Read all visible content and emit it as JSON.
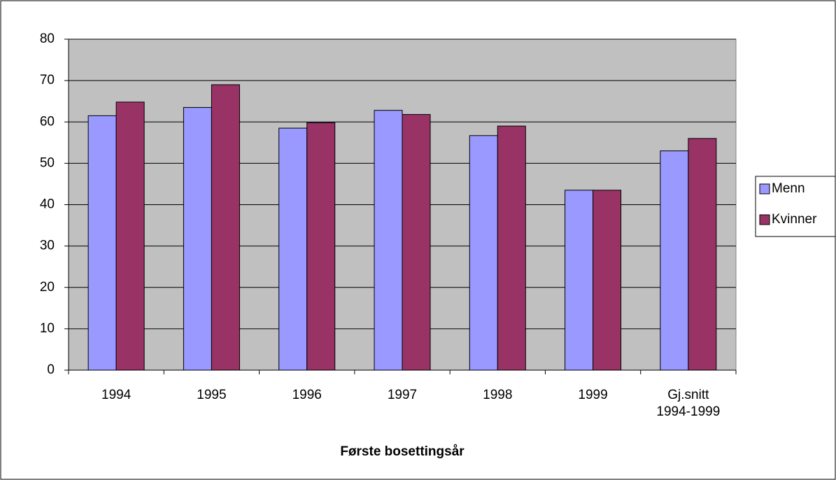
{
  "chart_data": {
    "type": "bar",
    "x_label": "Første bosettingsår",
    "categories": [
      "1994",
      "1995",
      "1996",
      "1997",
      "1998",
      "1999",
      "Gj.snitt\n1994-1999"
    ],
    "series": [
      {
        "name": "Menn",
        "color": "#9999ff",
        "values": [
          61.5,
          63.5,
          58.5,
          62.8,
          56.7,
          43.5,
          53
        ]
      },
      {
        "name": "Kvinner",
        "color": "#993366",
        "values": [
          64.8,
          69,
          59.8,
          61.8,
          59,
          43.5,
          56
        ]
      }
    ],
    "ylim": [
      0,
      80
    ],
    "yticks": [
      0,
      10,
      20,
      30,
      40,
      50,
      60,
      70,
      80
    ],
    "grid": true,
    "legend": "right"
  }
}
